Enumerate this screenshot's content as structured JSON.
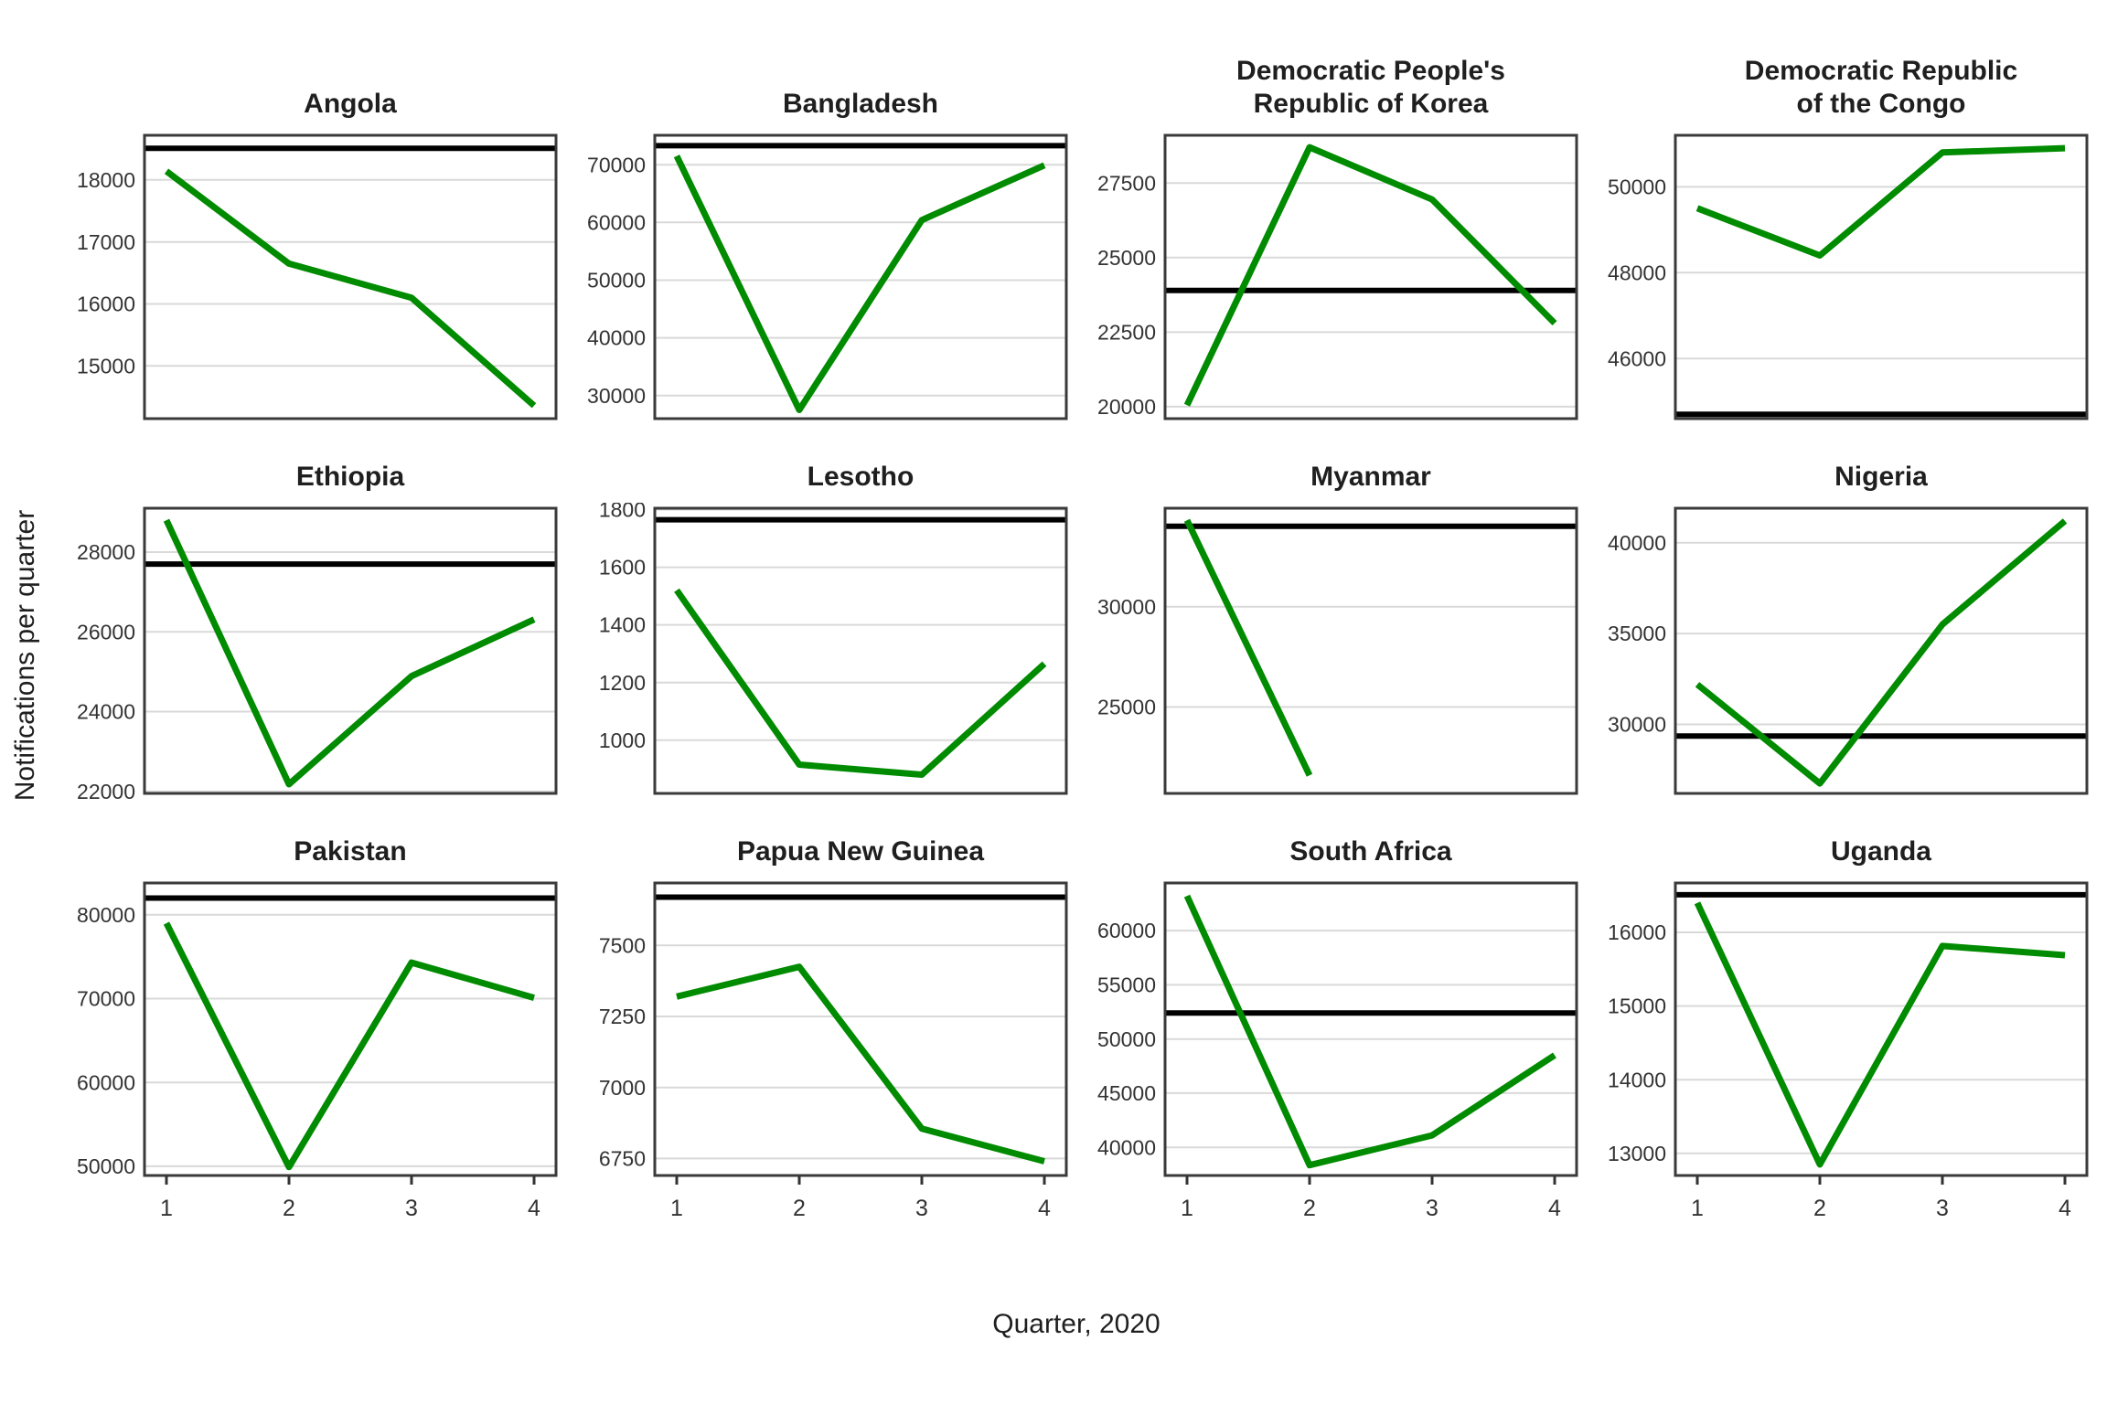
{
  "figure": {
    "y_label": "Notifications per quarter",
    "x_label": "Quarter, 2020",
    "x_ticks": [
      "1",
      "2",
      "3",
      "4"
    ],
    "legend": "none",
    "grid": "horizontal-only",
    "layout": "4 columns x 3 rows of facets, free y scales"
  },
  "colors": {
    "line": "#008B00",
    "reference": "#000000",
    "grid": "#D9D9D9",
    "panel_border": "#3A3A3A",
    "tick_text": "#333333",
    "title_text": "#1F1F1F",
    "background": "#FFFFFF"
  },
  "chart_data": [
    {
      "type": "line",
      "row": 1,
      "title_lines": [
        "Angola"
      ],
      "x": [
        1,
        2,
        3,
        4
      ],
      "series": [
        {
          "name": "notifications",
          "values": [
            18140,
            16650,
            16100,
            14360
          ]
        }
      ],
      "reference_line": 18510,
      "y_ticks": [
        15000,
        16000,
        17000,
        18000
      ],
      "ylim": [
        14150,
        18720
      ]
    },
    {
      "type": "line",
      "row": 1,
      "title_lines": [
        "Bangladesh"
      ],
      "x": [
        1,
        2,
        3,
        4
      ],
      "series": [
        {
          "name": "notifications",
          "values": [
            71500,
            27500,
            60400,
            69900
          ]
        }
      ],
      "reference_line": 73300,
      "y_ticks": [
        30000,
        40000,
        50000,
        60000,
        70000
      ],
      "ylim": [
        26000,
        75100
      ]
    },
    {
      "type": "line",
      "row": 1,
      "title_lines": [
        "Democratic People's",
        "Republic of Korea"
      ],
      "x": [
        1,
        2,
        3,
        4
      ],
      "series": [
        {
          "name": "notifications",
          "values": [
            20050,
            28700,
            26950,
            22800
          ]
        }
      ],
      "reference_line": 23900,
      "y_ticks": [
        20000,
        22500,
        25000,
        27500
      ],
      "ylim": [
        19600,
        29100
      ]
    },
    {
      "type": "line",
      "row": 1,
      "title_lines": [
        "Democratic Republic",
        "of the Congo"
      ],
      "x": [
        1,
        2,
        3,
        4
      ],
      "series": [
        {
          "name": "notifications",
          "values": [
            49500,
            48400,
            50800,
            50900
          ]
        }
      ],
      "reference_line": 44700,
      "y_ticks": [
        46000,
        48000,
        50000
      ],
      "ylim": [
        44600,
        51200
      ]
    },
    {
      "type": "line",
      "row": 2,
      "title_lines": [
        "Ethiopia"
      ],
      "x": [
        1,
        2,
        3,
        4
      ],
      "series": [
        {
          "name": "notifications",
          "values": [
            28800,
            22180,
            24890,
            26310
          ]
        }
      ],
      "reference_line": 27700,
      "y_ticks": [
        22000,
        24000,
        26000,
        28000
      ],
      "ylim": [
        21950,
        29100
      ]
    },
    {
      "type": "line",
      "row": 2,
      "title_lines": [
        "Lesotho"
      ],
      "x": [
        1,
        2,
        3,
        4
      ],
      "series": [
        {
          "name": "notifications",
          "values": [
            1520,
            915,
            880,
            1265
          ]
        }
      ],
      "reference_line": 1765,
      "y_ticks": [
        1000,
        1200,
        1400,
        1600,
        1800
      ],
      "ylim": [
        815,
        1805
      ]
    },
    {
      "type": "line",
      "row": 2,
      "title_lines": [
        "Myanmar"
      ],
      "x": [
        1,
        2,
        3,
        4
      ],
      "series": [
        {
          "name": "notifications",
          "values": [
            34300,
            21600,
            null,
            null
          ]
        }
      ],
      "reference_line": 34000,
      "y_ticks": [
        25000,
        30000
      ],
      "ylim": [
        20700,
        34900
      ]
    },
    {
      "type": "line",
      "row": 2,
      "title_lines": [
        "Nigeria"
      ],
      "x": [
        1,
        2,
        3,
        4
      ],
      "series": [
        {
          "name": "notifications",
          "values": [
            32200,
            26750,
            35500,
            41200
          ]
        }
      ],
      "reference_line": 29360,
      "y_ticks": [
        30000,
        35000,
        40000
      ],
      "ylim": [
        26200,
        41900
      ]
    },
    {
      "type": "line",
      "row": 3,
      "title_lines": [
        "Pakistan"
      ],
      "x": [
        1,
        2,
        3,
        4
      ],
      "series": [
        {
          "name": "notifications",
          "values": [
            79000,
            49900,
            74300,
            70100
          ]
        }
      ],
      "reference_line": 82000,
      "y_ticks": [
        50000,
        60000,
        70000,
        80000
      ],
      "ylim": [
        48900,
        83800
      ]
    },
    {
      "type": "line",
      "row": 3,
      "title_lines": [
        "Papua New Guinea"
      ],
      "x": [
        1,
        2,
        3,
        4
      ],
      "series": [
        {
          "name": "notifications",
          "values": [
            7320,
            7425,
            6855,
            6740
          ]
        }
      ],
      "reference_line": 7670,
      "y_ticks": [
        6750,
        7000,
        7250,
        7500
      ],
      "ylim": [
        6690,
        7720
      ]
    },
    {
      "type": "line",
      "row": 3,
      "title_lines": [
        "South Africa"
      ],
      "x": [
        1,
        2,
        3,
        4
      ],
      "series": [
        {
          "name": "notifications",
          "values": [
            63200,
            38350,
            41100,
            48500
          ]
        }
      ],
      "reference_line": 52400,
      "y_ticks": [
        40000,
        45000,
        50000,
        55000,
        60000
      ],
      "ylim": [
        37400,
        64400
      ]
    },
    {
      "type": "line",
      "row": 3,
      "title_lines": [
        "Uganda"
      ],
      "x": [
        1,
        2,
        3,
        4
      ],
      "series": [
        {
          "name": "notifications",
          "values": [
            16400,
            12850,
            15815,
            15690
          ]
        }
      ],
      "reference_line": 16510,
      "y_ticks": [
        13000,
        14000,
        15000,
        16000
      ],
      "ylim": [
        12700,
        16670
      ]
    }
  ]
}
